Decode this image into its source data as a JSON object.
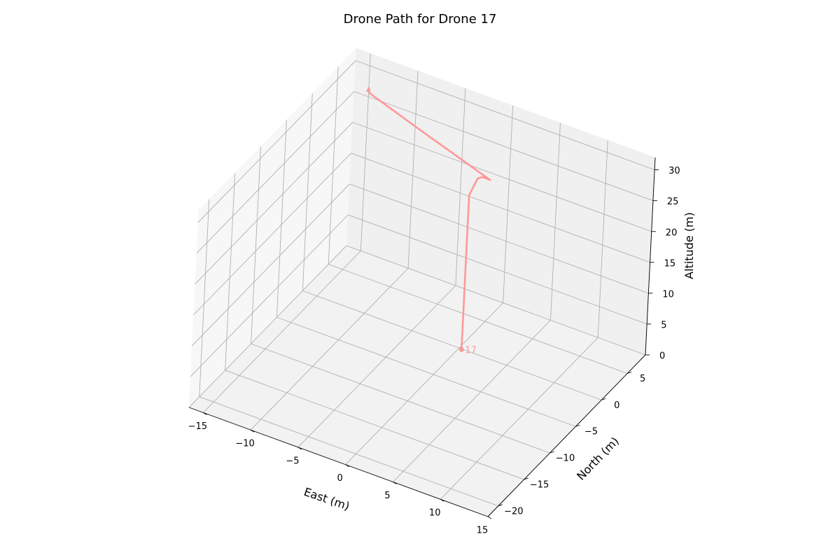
{
  "chart_data": {
    "type": "line",
    "projection": "3d",
    "title": "Drone Path for Drone 17",
    "xlabel": "East (m)",
    "ylabel": "North (m)",
    "zlabel": "Altitude (m)",
    "xlim": [
      -16.5,
      15
    ],
    "ylim": [
      -22,
      8.5
    ],
    "zlim": [
      0,
      32
    ],
    "xticks": [
      -15,
      -10,
      -5,
      0,
      5,
      10,
      15
    ],
    "yticks": [
      -20,
      -15,
      -10,
      -5,
      0,
      5
    ],
    "zticks": [
      0,
      5,
      10,
      15,
      20,
      25,
      30
    ],
    "grid": true,
    "color": "#ff9896",
    "series": [
      {
        "name": "",
        "x": [
          0.3,
          0.3,
          0.3,
          0.3,
          0.3,
          0.3,
          0.3,
          0.3,
          0.3,
          0.3,
          0.3,
          0.6,
          0.8,
          1.3,
          2.2,
          -6.5,
          -12.5,
          -12.6,
          -12.4
        ],
        "y": [
          -0.1,
          -0.1,
          -0.1,
          -0.1,
          -0.1,
          -0.1,
          -0.1,
          -0.1,
          -0.1,
          -0.1,
          -0.1,
          0.2,
          0.5,
          0.5,
          0.3,
          2.3,
          3.8,
          3.8,
          3.1
        ],
        "z": [
          0,
          1,
          2,
          3,
          5,
          8,
          12,
          16,
          20,
          23,
          25,
          26.5,
          27.5,
          28,
          28.2,
          29.9,
          31,
          31.8,
          32
        ]
      }
    ],
    "start_marker": {
      "x": 0.3,
      "y": -0.1,
      "z": 0
    },
    "annotations": [
      {
        "text": "17",
        "x": 0.3,
        "y": -0.1,
        "z": 0
      }
    ]
  }
}
